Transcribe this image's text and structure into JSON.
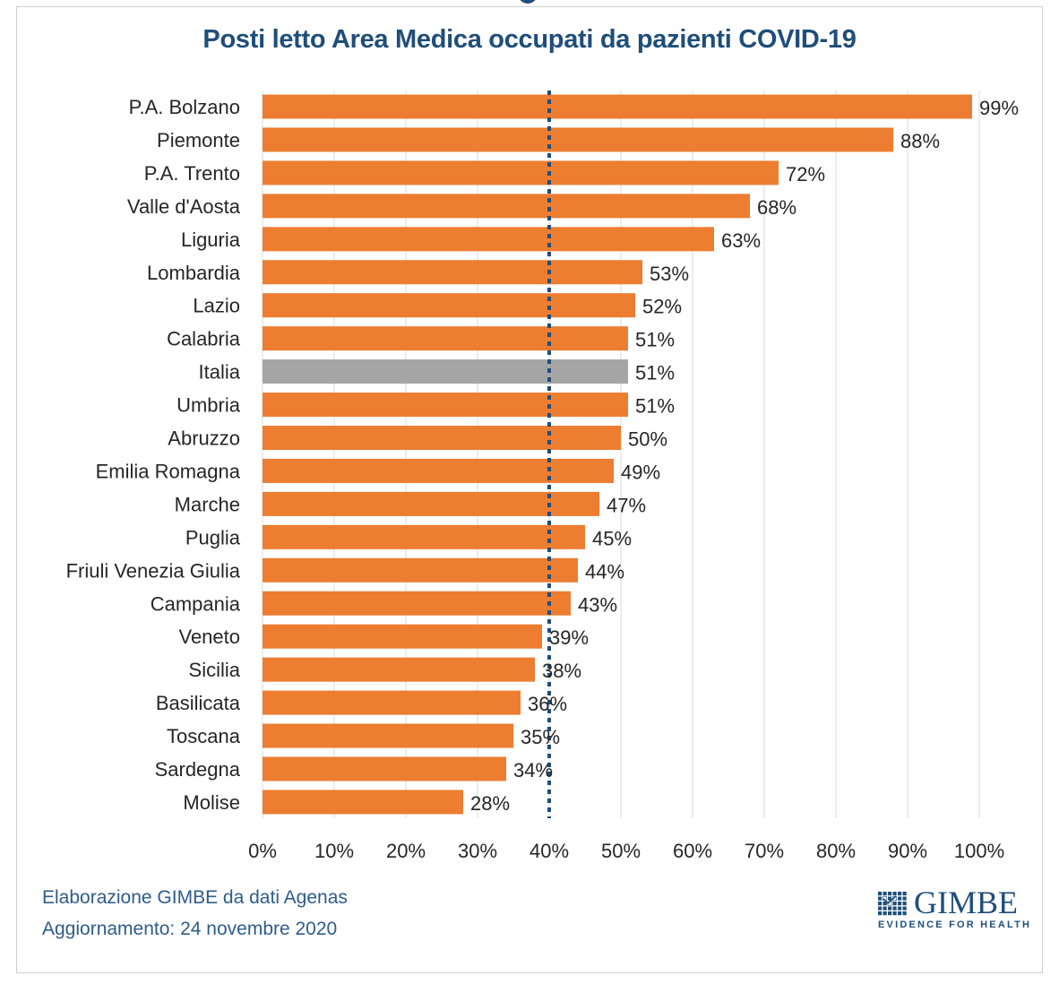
{
  "chart_data": {
    "type": "bar",
    "orientation": "horizontal",
    "title": "Posti letto Area Medica occupati da pazienti COVID-19",
    "xlabel": "",
    "ylabel": "",
    "xlim": [
      0,
      100
    ],
    "x_tick_labels": [
      "0%",
      "10%",
      "20%",
      "30%",
      "40%",
      "50%",
      "60%",
      "70%",
      "80%",
      "90%",
      "100%"
    ],
    "x_ticks": [
      0,
      10,
      20,
      30,
      40,
      50,
      60,
      70,
      80,
      90,
      100
    ],
    "grid": true,
    "legend": "none",
    "reference_line": {
      "value": 40,
      "style": "dotted",
      "color": "#1f4e79"
    },
    "colors": {
      "default": "#ed7d31",
      "highlight": "#a5a5a5"
    },
    "categories": [
      "P.A. Bolzano",
      "Piemonte",
      "P.A. Trento",
      "Valle d'Aosta",
      "Liguria",
      "Lombardia",
      "Lazio",
      "Calabria",
      "Italia",
      "Umbria",
      "Abruzzo",
      "Emilia Romagna",
      "Marche",
      "Puglia",
      "Friuli Venezia Giulia",
      "Campania",
      "Veneto",
      "Sicilia",
      "Basilicata",
      "Toscana",
      "Sardegna",
      "Molise"
    ],
    "values": [
      99,
      88,
      72,
      68,
      63,
      53,
      52,
      51,
      51,
      51,
      50,
      49,
      47,
      45,
      44,
      43,
      39,
      38,
      36,
      35,
      34,
      28
    ],
    "data_labels": [
      "99%",
      "88%",
      "72%",
      "68%",
      "63%",
      "53%",
      "52%",
      "51%",
      "51%",
      "51%",
      "50%",
      "49%",
      "47%",
      "45%",
      "44%",
      "43%",
      "39%",
      "38%",
      "36%",
      "35%",
      "34%",
      "28%"
    ],
    "highlight_category": "Italia"
  },
  "footer": {
    "source_line": "Elaborazione GIMBE da dati Agenas",
    "update_line": "Aggiornamento:  24 novembre 2020"
  },
  "logo": {
    "name": "GIMBE",
    "tagline": "EVIDENCE FOR HEALTH",
    "icon": "grid-check-icon"
  }
}
